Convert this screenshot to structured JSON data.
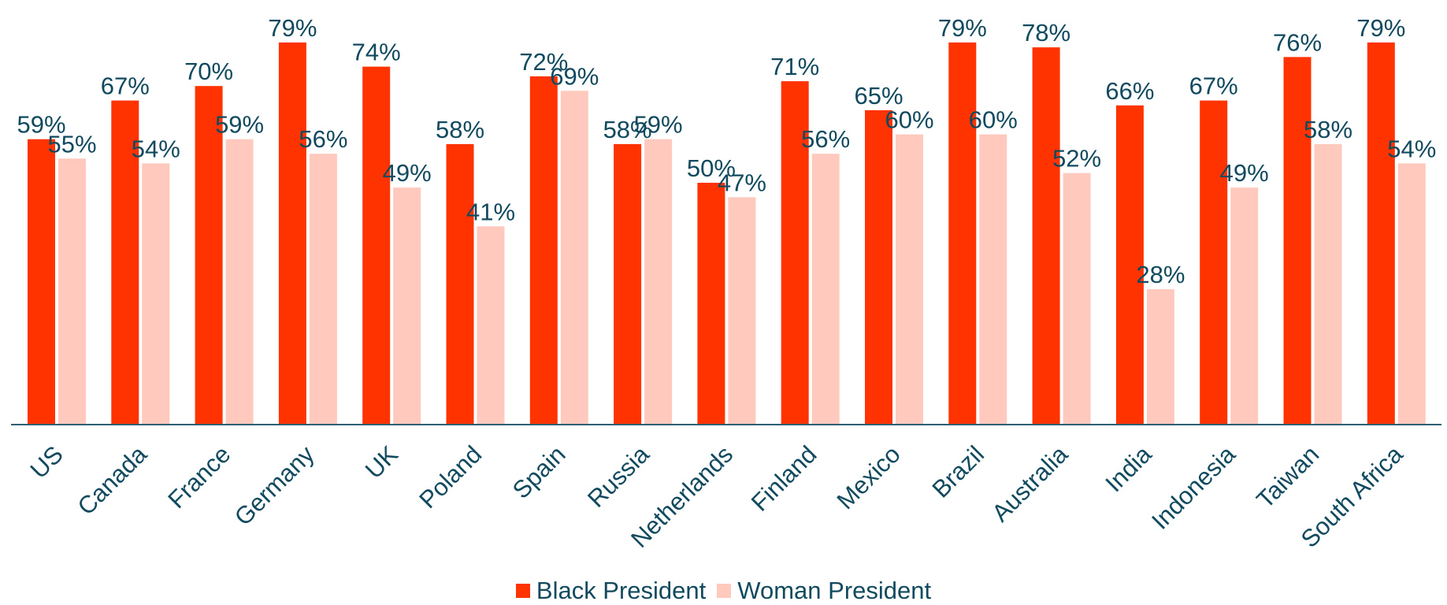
{
  "chart_data": {
    "type": "bar",
    "title": "",
    "xlabel": "",
    "ylabel": "",
    "ylim": [
      0,
      80
    ],
    "grid": false,
    "legend_position": "bottom",
    "value_suffix": "%",
    "categories": [
      "US",
      "Canada",
      "France",
      "Germany",
      "UK",
      "Poland",
      "Spain",
      "Russia",
      "Netherlands",
      "Finland",
      "Mexico",
      "Brazil",
      "Australia",
      "India",
      "Indonesia",
      "Taiwan",
      "South Africa"
    ],
    "series": [
      {
        "name": "Black President",
        "color": "#ff3300",
        "values": [
          59,
          67,
          70,
          79,
          74,
          58,
          72,
          58,
          50,
          71,
          65,
          79,
          78,
          66,
          67,
          76,
          79
        ]
      },
      {
        "name": "Woman President",
        "color": "#ffc9bd",
        "values": [
          55,
          54,
          59,
          56,
          49,
          41,
          69,
          59,
          47,
          56,
          60,
          60,
          52,
          28,
          49,
          58,
          54
        ]
      }
    ]
  },
  "colors": {
    "label_text": "#114a5e",
    "axis_line": "#2f5f73"
  }
}
